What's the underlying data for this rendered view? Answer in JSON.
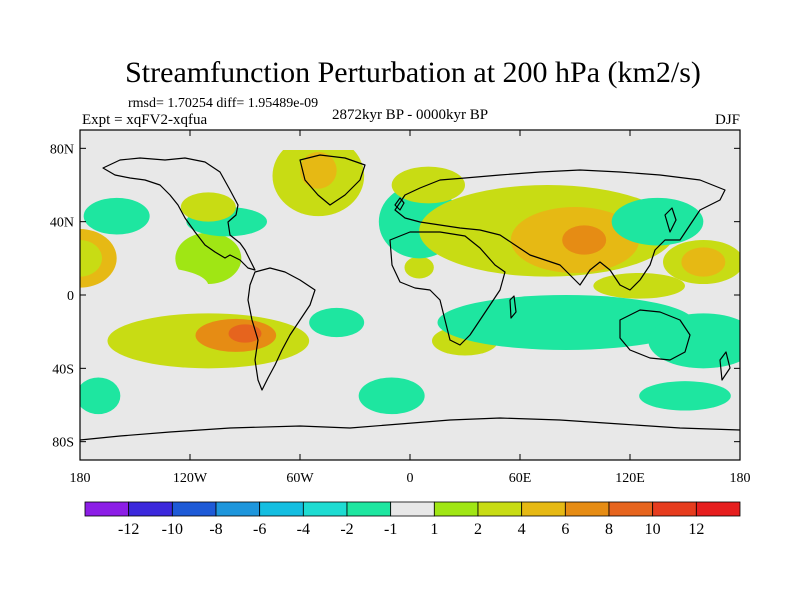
{
  "chart_data": {
    "type": "heatmap",
    "title": "Streamfunction Perturbation at 200 hPa (km2/s)",
    "stats_line": "rmsd= 1.70254 diff= 1.95489e-09",
    "experiment_label": "Expt = xqFV2-xqfua",
    "period_label": "2872kyr BP - 0000kyr BP",
    "season_label": "DJF",
    "x_axis": {
      "range": [
        -180,
        180
      ],
      "ticks": [
        {
          "value": -180,
          "label": "180"
        },
        {
          "value": -120,
          "label": "120W"
        },
        {
          "value": -60,
          "label": "60W"
        },
        {
          "value": 0,
          "label": "0"
        },
        {
          "value": 60,
          "label": "60E"
        },
        {
          "value": 120,
          "label": "120E"
        },
        {
          "value": 180,
          "label": "180"
        }
      ]
    },
    "y_axis": {
      "range": [
        -90,
        90
      ],
      "ticks": [
        {
          "value": 80,
          "label": "80N"
        },
        {
          "value": 40,
          "label": "40N"
        },
        {
          "value": 0,
          "label": "0"
        },
        {
          "value": -40,
          "label": "40S"
        },
        {
          "value": -80,
          "label": "80S"
        }
      ]
    },
    "colorbar": {
      "labels": [
        "-12",
        "-10",
        "-8",
        "-6",
        "-4",
        "-2",
        "-1",
        "1",
        "2",
        "4",
        "6",
        "8",
        "10",
        "12"
      ],
      "colors": [
        "#8c1ee6",
        "#3c28dc",
        "#1e5ad7",
        "#1e96dc",
        "#14bee1",
        "#1edcd2",
        "#1ee6a0",
        "#e8e8e8",
        "#a0e614",
        "#c8dc14",
        "#e6b914",
        "#e68c14",
        "#e6641e",
        "#e63c1e",
        "#e61e1e"
      ]
    },
    "regions": [
      {
        "class": 7,
        "lon": -120,
        "lat": 15,
        "rlon": 40,
        "rlat": 20
      },
      {
        "class": 8,
        "lon": -110,
        "lat": 20,
        "rlon": 18,
        "rlat": 14
      },
      {
        "class": 7,
        "lon": -150,
        "lat": -35,
        "rlon": 30,
        "rlat": 22
      },
      {
        "class": 7,
        "lon": -140,
        "lat": 5,
        "rlon": 30,
        "rlat": 10
      },
      {
        "class": 6,
        "lon": -160,
        "lat": 43,
        "rlon": 18,
        "rlat": 10
      },
      {
        "class": 6,
        "lon": -100,
        "lat": 40,
        "rlon": 22,
        "rlat": 8
      },
      {
        "class": 6,
        "lon": -40,
        "lat": -15,
        "rlon": 15,
        "rlat": 8
      },
      {
        "class": 6,
        "lon": -170,
        "lat": -55,
        "rlon": 12,
        "rlat": 10
      },
      {
        "class": 6,
        "lon": -10,
        "lat": -55,
        "rlon": 18,
        "rlat": 10
      },
      {
        "class": 10,
        "lon": -180,
        "lat": 20,
        "rlon": 20,
        "rlat": 16
      },
      {
        "class": 9,
        "lon": -180,
        "lat": 20,
        "rlon": 12,
        "rlat": 10
      },
      {
        "class": 9,
        "lon": -50,
        "lat": 65,
        "rlon": 25,
        "rlat": 22
      },
      {
        "class": 10,
        "lon": -50,
        "lat": 68,
        "rlon": 10,
        "rlat": 10
      },
      {
        "class": 9,
        "lon": -110,
        "lat": -25,
        "rlon": 55,
        "rlat": 15
      },
      {
        "class": 11,
        "lon": -95,
        "lat": -22,
        "rlon": 22,
        "rlat": 9
      },
      {
        "class": 12,
        "lon": -90,
        "lat": -21,
        "rlon": 9,
        "rlat": 5
      },
      {
        "class": 9,
        "lon": -110,
        "lat": 48,
        "rlon": 15,
        "rlat": 8
      },
      {
        "class": 9,
        "lon": 5,
        "lat": 15,
        "rlon": 8,
        "rlat": 6
      },
      {
        "class": 6,
        "lon": 5,
        "lat": 40,
        "rlon": 22,
        "rlat": 20
      },
      {
        "class": 9,
        "lon": 75,
        "lat": 35,
        "rlon": 70,
        "rlat": 25
      },
      {
        "class": 10,
        "lon": 90,
        "lat": 30,
        "rlon": 35,
        "rlat": 18
      },
      {
        "class": 11,
        "lon": 95,
        "lat": 30,
        "rlon": 12,
        "rlat": 8
      },
      {
        "class": 9,
        "lon": 125,
        "lat": 5,
        "rlon": 25,
        "rlat": 7
      },
      {
        "class": 9,
        "lon": 30,
        "lat": -25,
        "rlon": 18,
        "rlat": 8
      },
      {
        "class": 9,
        "lon": 160,
        "lat": 18,
        "rlon": 22,
        "rlat": 12
      },
      {
        "class": 10,
        "lon": 160,
        "lat": 18,
        "rlon": 12,
        "rlat": 8
      },
      {
        "class": 9,
        "lon": 150,
        "lat": -30,
        "rlon": 10,
        "rlat": 8
      },
      {
        "class": 6,
        "lon": 85,
        "lat": -15,
        "rlon": 70,
        "rlat": 15
      },
      {
        "class": 6,
        "lon": 135,
        "lat": 40,
        "rlon": 25,
        "rlat": 13
      },
      {
        "class": 6,
        "lon": 150,
        "lat": -55,
        "rlon": 25,
        "rlat": 8
      },
      {
        "class": 6,
        "lon": 160,
        "lat": -25,
        "rlon": 30,
        "rlat": 15
      },
      {
        "class": 9,
        "lon": 10,
        "lat": 60,
        "rlon": 20,
        "rlat": 10
      },
      {
        "class": 9,
        "lon": 40,
        "lat": 45,
        "rlon": 20,
        "rlat": 8
      }
    ]
  }
}
